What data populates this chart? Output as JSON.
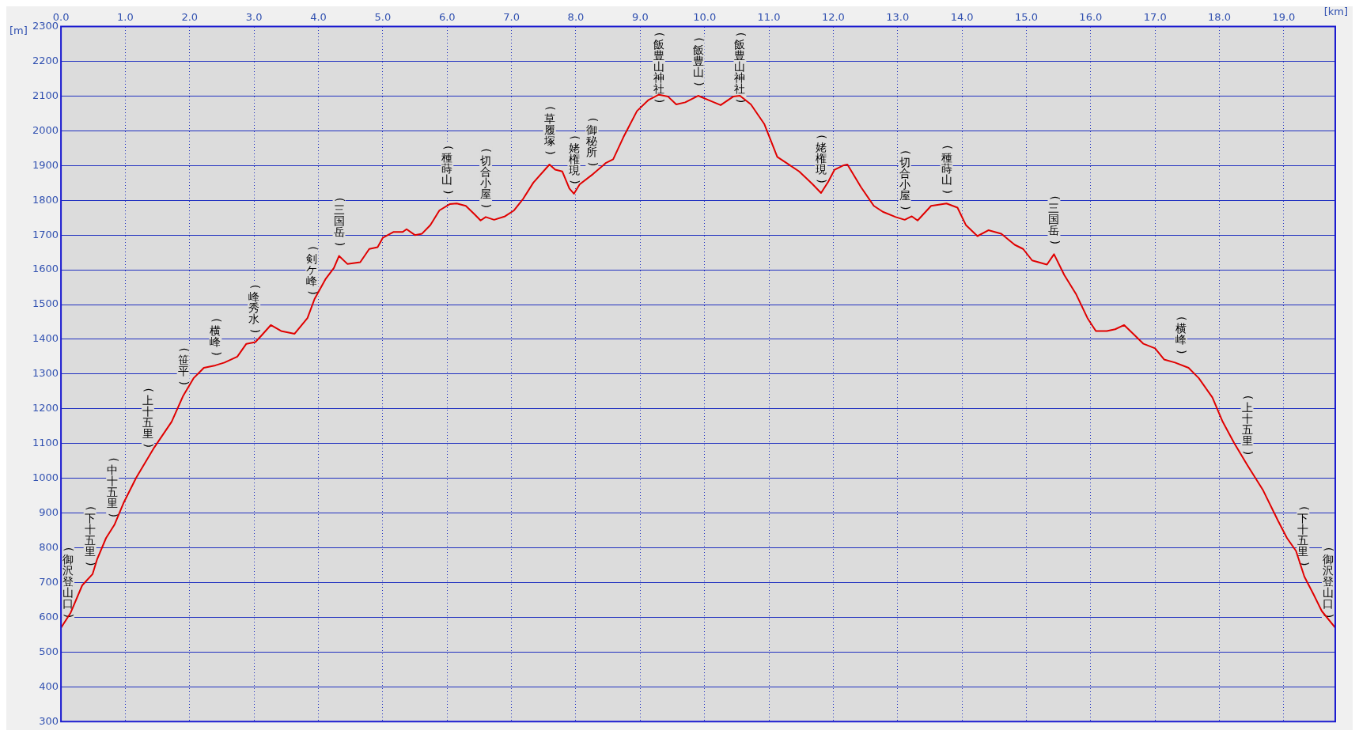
{
  "chart_data": {
    "type": "line",
    "xlabel": "[km]",
    "ylabel": "[m]",
    "color": "#e00000",
    "marker": "none",
    "line_style": "solid",
    "grid": true,
    "legend": false,
    "xlim": [
      0,
      19.8
    ],
    "xticks": [
      {
        "value": 0,
        "label": "0.0"
      },
      {
        "value": 1,
        "label": "1.0"
      },
      {
        "value": 2,
        "label": "2.0"
      },
      {
        "value": 3,
        "label": "3.0"
      },
      {
        "value": 4,
        "label": "4.0"
      },
      {
        "value": 5,
        "label": "5.0"
      },
      {
        "value": 6,
        "label": "6.0"
      },
      {
        "value": 7,
        "label": "7.0"
      },
      {
        "value": 8,
        "label": "8.0"
      },
      {
        "value": 9,
        "label": "9.0"
      },
      {
        "value": 10,
        "label": "10.0"
      },
      {
        "value": 11,
        "label": "11.0"
      },
      {
        "value": 12,
        "label": "12.0"
      },
      {
        "value": 13,
        "label": "13.0"
      },
      {
        "value": 14,
        "label": "14.0"
      },
      {
        "value": 15,
        "label": "15.0"
      },
      {
        "value": 16,
        "label": "16.0"
      },
      {
        "value": 17,
        "label": "17.0"
      },
      {
        "value": 18,
        "label": "18.0"
      },
      {
        "value": 19,
        "label": "19.0"
      }
    ],
    "ylim": [
      300,
      2300
    ],
    "yticks": [
      300,
      400,
      500,
      600,
      700,
      800,
      900,
      1000,
      1100,
      1200,
      1300,
      1400,
      1500,
      1600,
      1700,
      1800,
      1900,
      2000,
      2100,
      2200,
      2300
    ],
    "x": [
      0,
      0.15,
      0.33,
      0.49,
      0.56,
      0.7,
      0.83,
      0.97,
      1.17,
      1.45,
      1.72,
      1.9,
      2.06,
      2.22,
      2.4,
      2.54,
      2.74,
      2.88,
      3.02,
      3.12,
      3.26,
      3.42,
      3.63,
      3.83,
      3.94,
      4.11,
      4.24,
      4.32,
      4.45,
      4.65,
      4.79,
      4.92,
      5.0,
      5.17,
      5.31,
      5.37,
      5.5,
      5.61,
      5.74,
      5.88,
      6.04,
      6.15,
      6.29,
      6.43,
      6.52,
      6.6,
      6.73,
      6.9,
      7.04,
      7.18,
      7.34,
      7.59,
      7.68,
      7.79,
      7.9,
      7.97,
      8.06,
      8.27,
      8.47,
      8.58,
      8.74,
      8.95,
      9.13,
      9.29,
      9.43,
      9.56,
      9.7,
      9.9,
      10.08,
      10.25,
      10.45,
      10.55,
      10.72,
      10.93,
      11.13,
      11.27,
      11.47,
      11.68,
      11.81,
      11.92,
      12.02,
      12.15,
      12.22,
      12.43,
      12.63,
      12.77,
      12.97,
      13.11,
      13.22,
      13.31,
      13.52,
      13.76,
      13.93,
      14.06,
      14.24,
      14.41,
      14.61,
      14.82,
      14.95,
      15.09,
      15.32,
      15.43,
      15.59,
      15.77,
      15.95,
      16.08,
      16.25,
      16.38,
      16.52,
      16.66,
      16.82,
      17.0,
      17.14,
      17.31,
      17.52,
      17.68,
      17.89,
      18.05,
      18.23,
      18.43,
      18.68,
      18.91,
      19.05,
      19.19,
      19.32,
      19.46,
      19.59,
      19.8
    ],
    "values": [
      570,
      613,
      692,
      724,
      766,
      828,
      866,
      928,
      1002,
      1089,
      1163,
      1238,
      1288,
      1318,
      1325,
      1333,
      1350,
      1387,
      1392,
      1412,
      1441,
      1424,
      1416,
      1461,
      1516,
      1573,
      1605,
      1640,
      1617,
      1622,
      1660,
      1665,
      1692,
      1709,
      1709,
      1717,
      1700,
      1704,
      1729,
      1771,
      1789,
      1791,
      1784,
      1759,
      1742,
      1752,
      1744,
      1754,
      1771,
      1804,
      1851,
      1903,
      1888,
      1883,
      1834,
      1819,
      1846,
      1876,
      1908,
      1918,
      1982,
      2057,
      2089,
      2104,
      2099,
      2076,
      2082,
      2101,
      2087,
      2074,
      2099,
      2101,
      2076,
      2019,
      1925,
      1908,
      1883,
      1846,
      1821,
      1853,
      1888,
      1900,
      1903,
      1838,
      1784,
      1767,
      1752,
      1744,
      1754,
      1742,
      1784,
      1791,
      1779,
      1729,
      1697,
      1714,
      1704,
      1672,
      1660,
      1627,
      1615,
      1645,
      1585,
      1531,
      1461,
      1424,
      1424,
      1429,
      1441,
      1416,
      1387,
      1374,
      1342,
      1333,
      1318,
      1288,
      1233,
      1163,
      1101,
      1039,
      965,
      878,
      828,
      791,
      717,
      667,
      618,
      570
    ],
    "annotations": [
      {
        "text": "(御沢登山口)",
        "x": 0,
        "y": 570
      },
      {
        "text": "(下十五里)",
        "x": 0.45,
        "y": 720
      },
      {
        "text": "(中十五里)",
        "x": 0.8,
        "y": 860
      },
      {
        "text": "(上十五里)",
        "x": 1.35,
        "y": 1060
      },
      {
        "text": "(笹平)",
        "x": 1.9,
        "y": 1240
      },
      {
        "text": "(横峰)",
        "x": 2.4,
        "y": 1325
      },
      {
        "text": "(峰秀水)",
        "x": 3.0,
        "y": 1390
      },
      {
        "text": "(剣ケ峰)",
        "x": 3.9,
        "y": 1500
      },
      {
        "text": "(三国岳)",
        "x": 4.32,
        "y": 1640
      },
      {
        "text": "(種蒔山)",
        "x": 6.0,
        "y": 1790
      },
      {
        "text": "(切合小屋)",
        "x": 6.6,
        "y": 1750
      },
      {
        "text": "(草履塚)",
        "x": 7.59,
        "y": 1903
      },
      {
        "text": "(姥権現)",
        "x": 7.97,
        "y": 1819
      },
      {
        "text": "(御秘所)",
        "x": 8.25,
        "y": 1870
      },
      {
        "text": "(飯豊山神社)",
        "x": 9.29,
        "y": 2104
      },
      {
        "text": "(飯豊山)",
        "x": 9.9,
        "y": 2101
      },
      {
        "text": "(飯豊山神社)",
        "x": 10.55,
        "y": 2101
      },
      {
        "text": "(姥権現)",
        "x": 11.81,
        "y": 1821
      },
      {
        "text": "(切合小屋)",
        "x": 13.11,
        "y": 1744
      },
      {
        "text": "(種蒔山)",
        "x": 13.76,
        "y": 1791
      },
      {
        "text": "(三国岳)",
        "x": 15.43,
        "y": 1645
      },
      {
        "text": "(横峰)",
        "x": 17.4,
        "y": 1330
      },
      {
        "text": "(上十五里)",
        "x": 18.43,
        "y": 1039
      },
      {
        "text": "(下十五里)",
        "x": 19.3,
        "y": 720
      },
      {
        "text": "(御沢登山口)",
        "x": 19.8,
        "y": 570
      }
    ]
  }
}
